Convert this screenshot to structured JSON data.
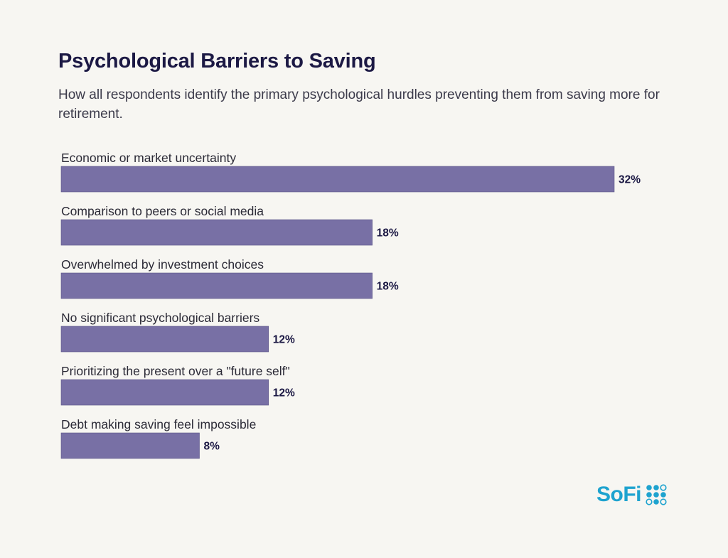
{
  "header": {
    "title": "Psychological Barriers to Saving",
    "subtitle": "How all respondents identify the primary psychological hurdles preventing them from saving more for retirement."
  },
  "brand": {
    "logo_text": "SoFi",
    "logo_icon": "dots-grid-icon",
    "color": "#1ea3cf"
  },
  "colors": {
    "bar": "#7870a5",
    "background": "#f7f6f2"
  },
  "chart_data": {
    "type": "bar",
    "orientation": "horizontal",
    "categories": [
      "Economic or market uncertainty",
      "Comparison to peers or social media",
      "Overwhelmed by investment choices",
      "No significant psychological barriers",
      "Prioritizing the present over a \"future self\"",
      "Debt making saving feel impossible"
    ],
    "values": [
      32,
      18,
      18,
      12,
      12,
      8
    ],
    "value_labels": [
      "32%",
      "18%",
      "18%",
      "12%",
      "12%",
      "8%"
    ],
    "unit": "%",
    "xlim": [
      0,
      32
    ],
    "grid": false,
    "legend": "none"
  }
}
